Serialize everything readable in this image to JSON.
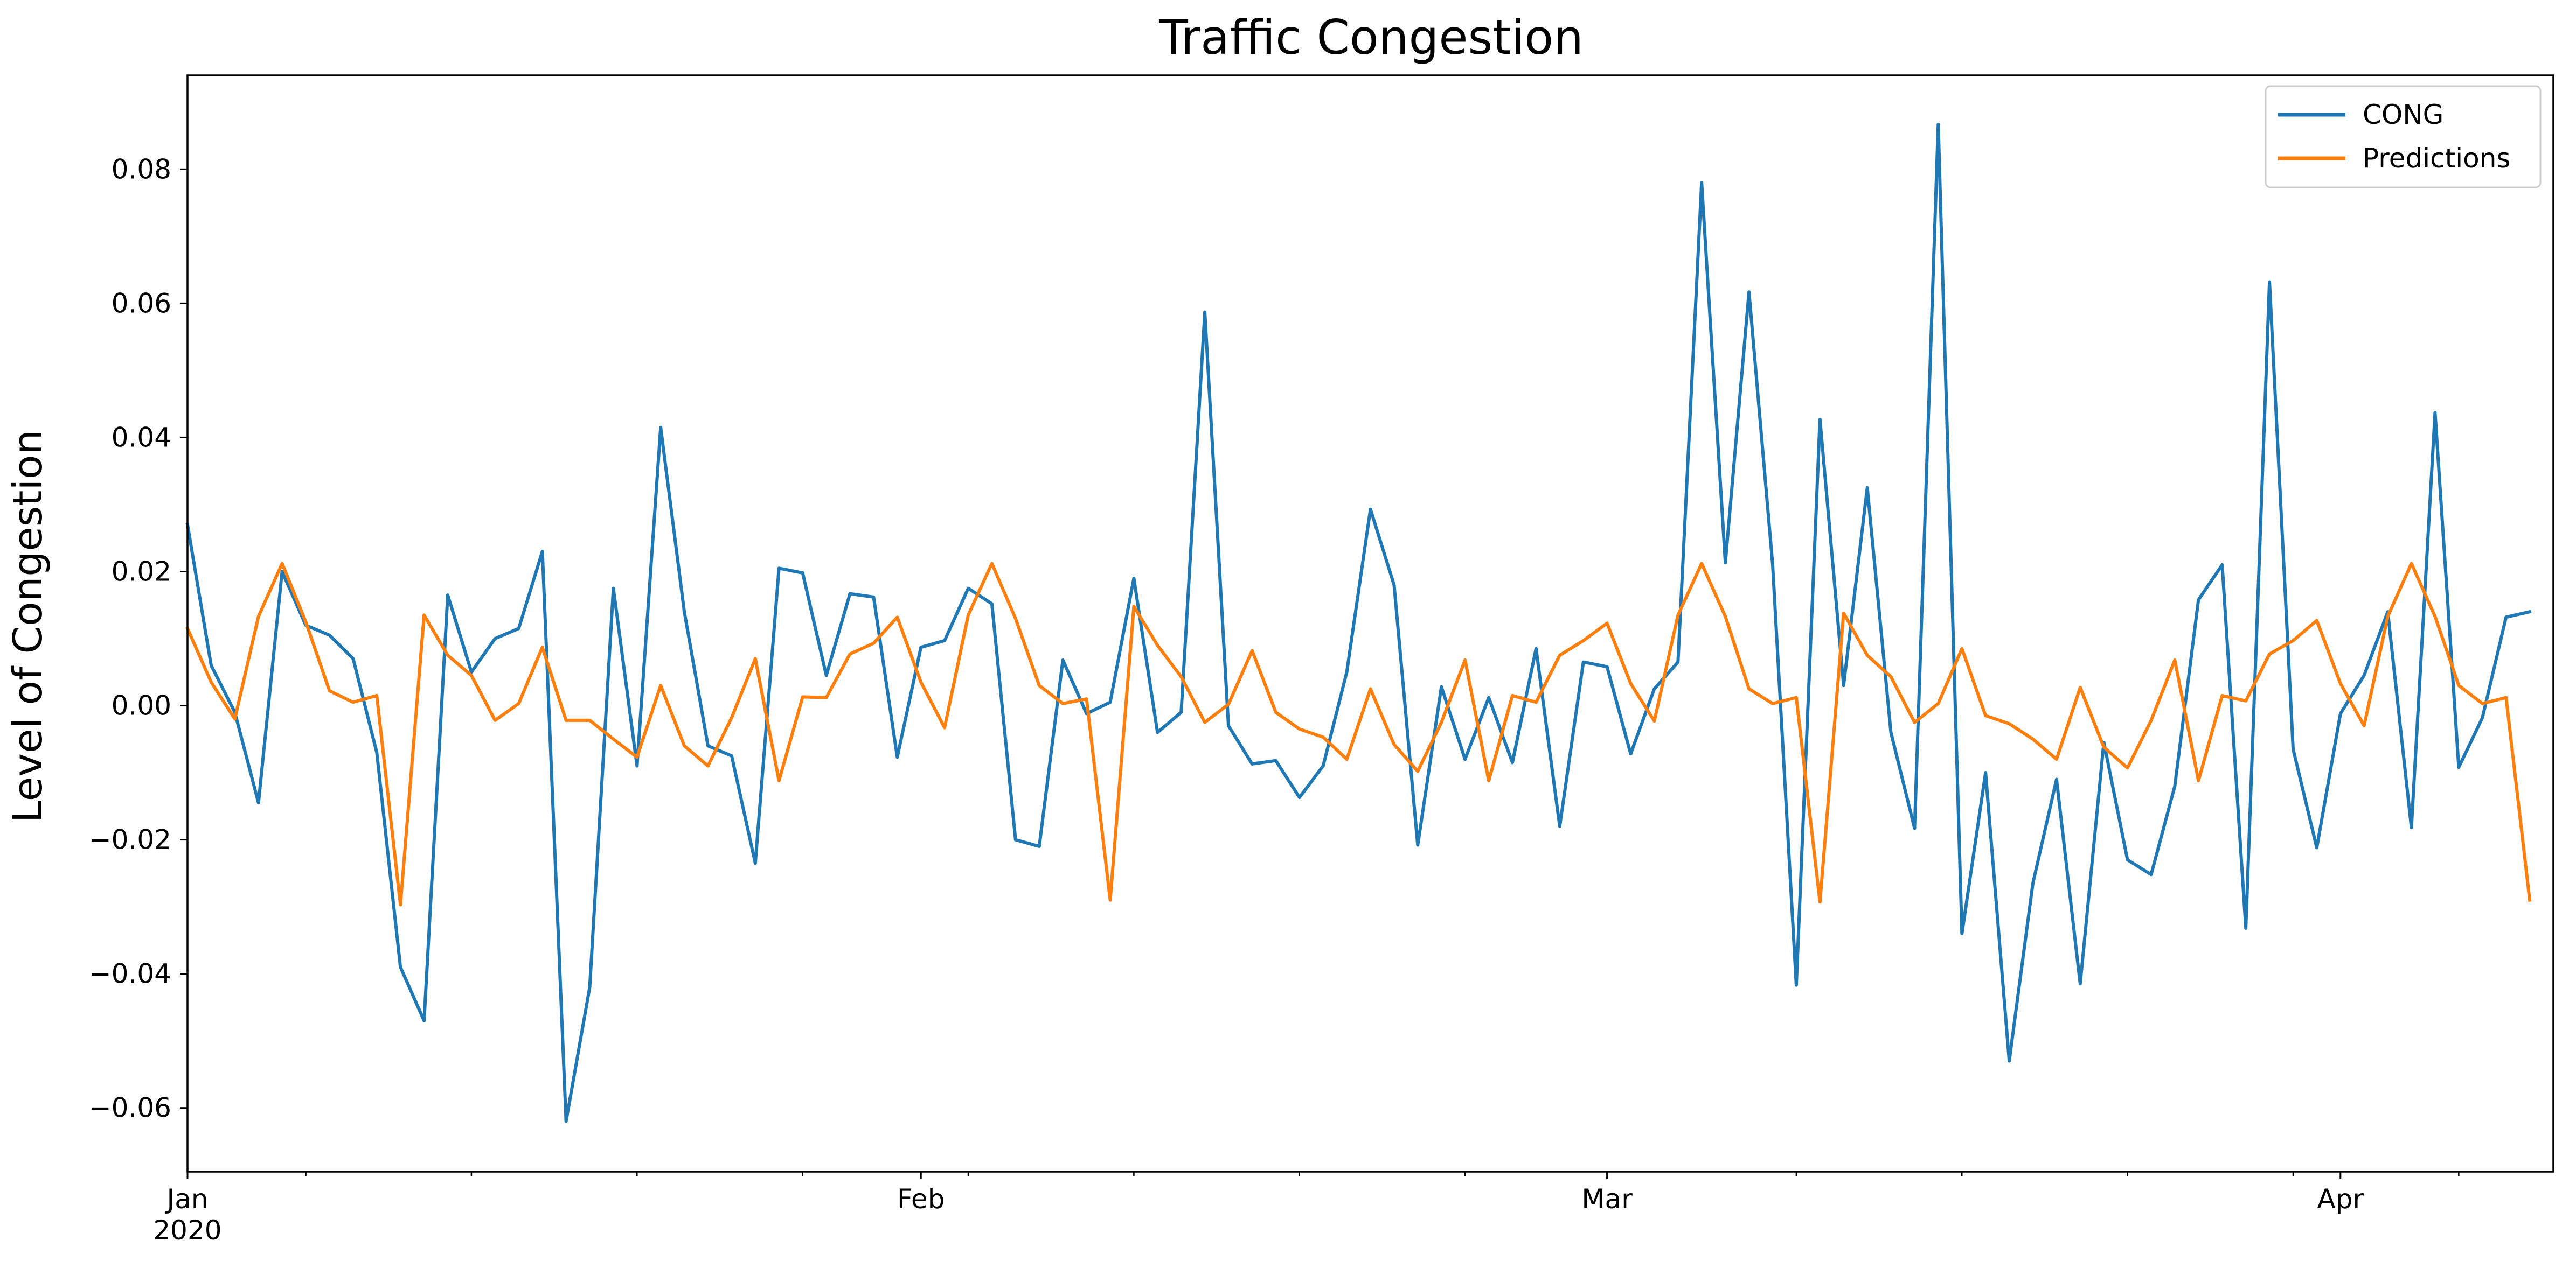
{
  "chart_data": {
    "type": "line",
    "title": "Traffic Congestion",
    "xlabel": "",
    "ylabel": "Level of Congestion",
    "x_start": "2020-01-01",
    "x_end": "2020-04-10",
    "frequency": "daily",
    "xlim": [
      "2020-01-01",
      "2020-04-10"
    ],
    "ylim": [
      -0.0695,
      0.094
    ],
    "x_major_ticks": [
      {
        "date": "2020-01-01",
        "label": "Jan",
        "sublabel": "2020"
      },
      {
        "date": "2020-02-01",
        "label": "Feb",
        "sublabel": ""
      },
      {
        "date": "2020-03-01",
        "label": "Mar",
        "sublabel": ""
      },
      {
        "date": "2020-04-01",
        "label": "Apr",
        "sublabel": ""
      }
    ],
    "x_minor_ticks": [
      "2020-01-06",
      "2020-01-13",
      "2020-01-20",
      "2020-01-27",
      "2020-02-03",
      "2020-02-10",
      "2020-02-17",
      "2020-02-24",
      "2020-03-09",
      "2020-03-16",
      "2020-03-23",
      "2020-03-30",
      "2020-04-06"
    ],
    "y_ticks": [
      {
        "value": -0.06,
        "label": "−0.06"
      },
      {
        "value": -0.04,
        "label": "−0.04"
      },
      {
        "value": -0.02,
        "label": "−0.02"
      },
      {
        "value": 0.0,
        "label": "0.00"
      },
      {
        "value": 0.02,
        "label": "0.02"
      },
      {
        "value": 0.04,
        "label": "0.04"
      },
      {
        "value": 0.06,
        "label": "0.06"
      },
      {
        "value": 0.08,
        "label": "0.08"
      }
    ],
    "grid": false,
    "legend_position": "top-right",
    "series": [
      {
        "name": "CONG",
        "color": "#1f77b4",
        "values": [
          0.027,
          0.006,
          -0.001,
          -0.0145,
          0.02,
          0.012,
          0.0105,
          0.007,
          -0.007,
          -0.039,
          -0.047,
          0.0165,
          0.005,
          0.01,
          0.0115,
          0.023,
          -0.062,
          -0.042,
          0.0175,
          -0.009,
          0.0415,
          0.014,
          -0.006,
          -0.0075,
          -0.0235,
          0.0205,
          0.0198,
          0.0045,
          0.0167,
          0.0162,
          -0.0077,
          0.0087,
          0.0097,
          0.0175,
          0.0152,
          -0.02,
          -0.021,
          0.0068,
          -0.0012,
          0.0005,
          0.019,
          -0.004,
          -0.001,
          0.0587,
          -0.003,
          -0.0087,
          -0.0082,
          -0.0137,
          -0.009,
          0.005,
          0.0293,
          0.018,
          -0.0208,
          0.0028,
          -0.008,
          0.0012,
          -0.0085,
          0.0085,
          -0.018,
          0.0065,
          0.0058,
          -0.0072,
          0.0025,
          0.0065,
          0.078,
          0.0213,
          0.0617,
          0.021,
          -0.0417,
          0.0427,
          0.003,
          0.0325,
          -0.004,
          -0.0183,
          0.0867,
          -0.034,
          -0.01,
          -0.053,
          -0.0265,
          -0.011,
          -0.0415,
          -0.0055,
          -0.023,
          -0.0252,
          -0.012,
          0.0158,
          0.021,
          -0.0332,
          0.0632,
          -0.0065,
          -0.0212,
          -0.0012,
          0.0045,
          0.014,
          -0.0182,
          0.0437,
          -0.0092,
          -0.0018,
          0.0132,
          0.014
        ]
      },
      {
        "name": "Predictions",
        "color": "#ff7f0e",
        "values": [
          0.0115,
          0.0035,
          -0.002,
          0.0133,
          0.0212,
          0.0125,
          0.0022,
          0.0005,
          0.0015,
          -0.0297,
          0.0135,
          0.0075,
          0.0045,
          -0.0022,
          0.0003,
          0.0087,
          -0.0022,
          -0.0022,
          -0.005,
          -0.0077,
          0.003,
          -0.006,
          -0.009,
          -0.0018,
          0.007,
          -0.0112,
          0.0013,
          0.0012,
          0.0077,
          0.0093,
          0.0132,
          0.0035,
          -0.0033,
          0.0135,
          0.0212,
          0.013,
          0.003,
          0.0003,
          0.001,
          -0.029,
          0.0148,
          0.009,
          0.0043,
          -0.0025,
          0.0002,
          0.0082,
          -0.001,
          -0.0035,
          -0.0047,
          -0.008,
          0.0025,
          -0.0058,
          -0.0098,
          -0.0025,
          0.0068,
          -0.0112,
          0.0015,
          0.0005,
          0.0075,
          0.0097,
          0.0123,
          0.0033,
          -0.0023,
          0.0135,
          0.0212,
          0.0133,
          0.0025,
          0.0003,
          0.0012,
          -0.0293,
          0.0138,
          0.0075,
          0.0043,
          -0.0025,
          0.0003,
          0.0085,
          -0.0015,
          -0.0027,
          -0.005,
          -0.008,
          0.0027,
          -0.0062,
          -0.0093,
          -0.0022,
          0.0068,
          -0.0112,
          0.0015,
          0.0007,
          0.0077,
          0.0097,
          0.0127,
          0.0033,
          -0.003,
          0.0133,
          0.0212,
          0.0133,
          0.003,
          0.0003,
          0.0012,
          -0.029
        ]
      }
    ]
  }
}
